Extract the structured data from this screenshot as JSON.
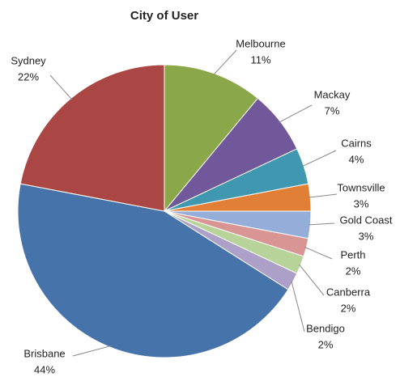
{
  "chart_data": {
    "type": "pie",
    "title": "City of User",
    "categories": [
      "Melbourne",
      "Mackay",
      "Cairns",
      "Townsville",
      "Gold Coast",
      "Perth",
      "Canberra",
      "Bendigo",
      "Brisbane",
      "Sydney"
    ],
    "values": [
      11,
      7,
      4,
      3,
      3,
      2,
      2,
      2,
      44,
      22
    ],
    "value_labels": [
      "11%",
      "7%",
      "4%",
      "3%",
      "3%",
      "2%",
      "2%",
      "2%",
      "44%",
      "22%"
    ],
    "colors": [
      "#8aa84a",
      "#71589a",
      "#3f97b0",
      "#e07f35",
      "#94aed9",
      "#d99594",
      "#b8d39a",
      "#ada0c8",
      "#4673aa",
      "#aa4643"
    ]
  }
}
